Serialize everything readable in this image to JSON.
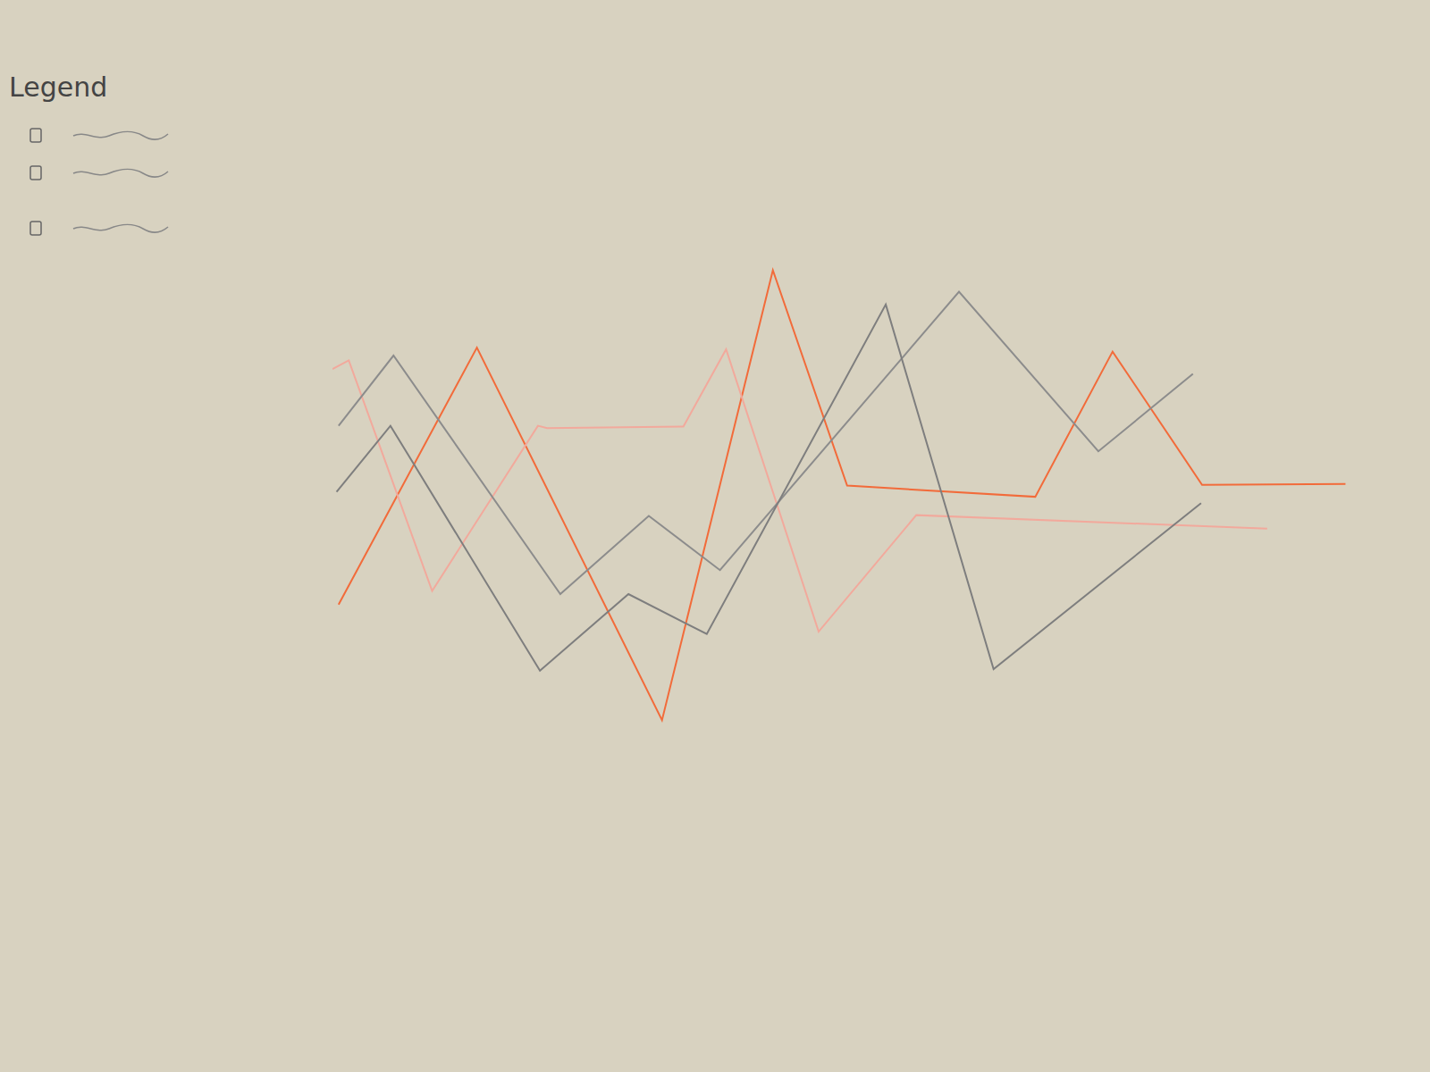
{
  "chart_data": {
    "type": "line",
    "annotations": [
      "Legend"
    ],
    "xlim": [
      0,
      100
    ],
    "ylim": [
      0,
      100
    ],
    "tick_labels": false,
    "grid": false,
    "series": [
      {
        "color": "#f26b3a",
        "x": [
          0.6,
          14.2,
          32.4,
          43.3,
          50.6,
          69.1,
          76.7,
          85.5,
          99.6
        ],
        "values": [
          40.8,
          73.0,
          26.3,
          82.7,
          55.7,
          54.3,
          72.5,
          55.8,
          55.9
        ]
      },
      {
        "color": "#f2a99c",
        "x": [
          0,
          1.6,
          9.8,
          20.2,
          21.1,
          34.5,
          38.7,
          47.8,
          57.4,
          91.9
        ],
        "values": [
          70.3,
          71.4,
          42.5,
          63.2,
          62.9,
          63.1,
          72.8,
          37.4,
          52.0,
          50.3
        ]
      },
      {
        "color": "#8c8c8c",
        "x": [
          0.6,
          6.0,
          22.4,
          31.1,
          38.1,
          61.6,
          75.3,
          84.6
        ],
        "values": [
          63.2,
          72.0,
          42.1,
          51.9,
          45.1,
          80.0,
          60.0,
          69.7
        ]
      },
      {
        "color": "#7e7e7e",
        "x": [
          0.4,
          5.7,
          20.4,
          29.1,
          36.8,
          54.4,
          65.0,
          85.4
        ],
        "values": [
          54.9,
          63.2,
          32.5,
          42.1,
          37.1,
          78.4,
          32.7,
          53.5
        ]
      }
    ]
  }
}
